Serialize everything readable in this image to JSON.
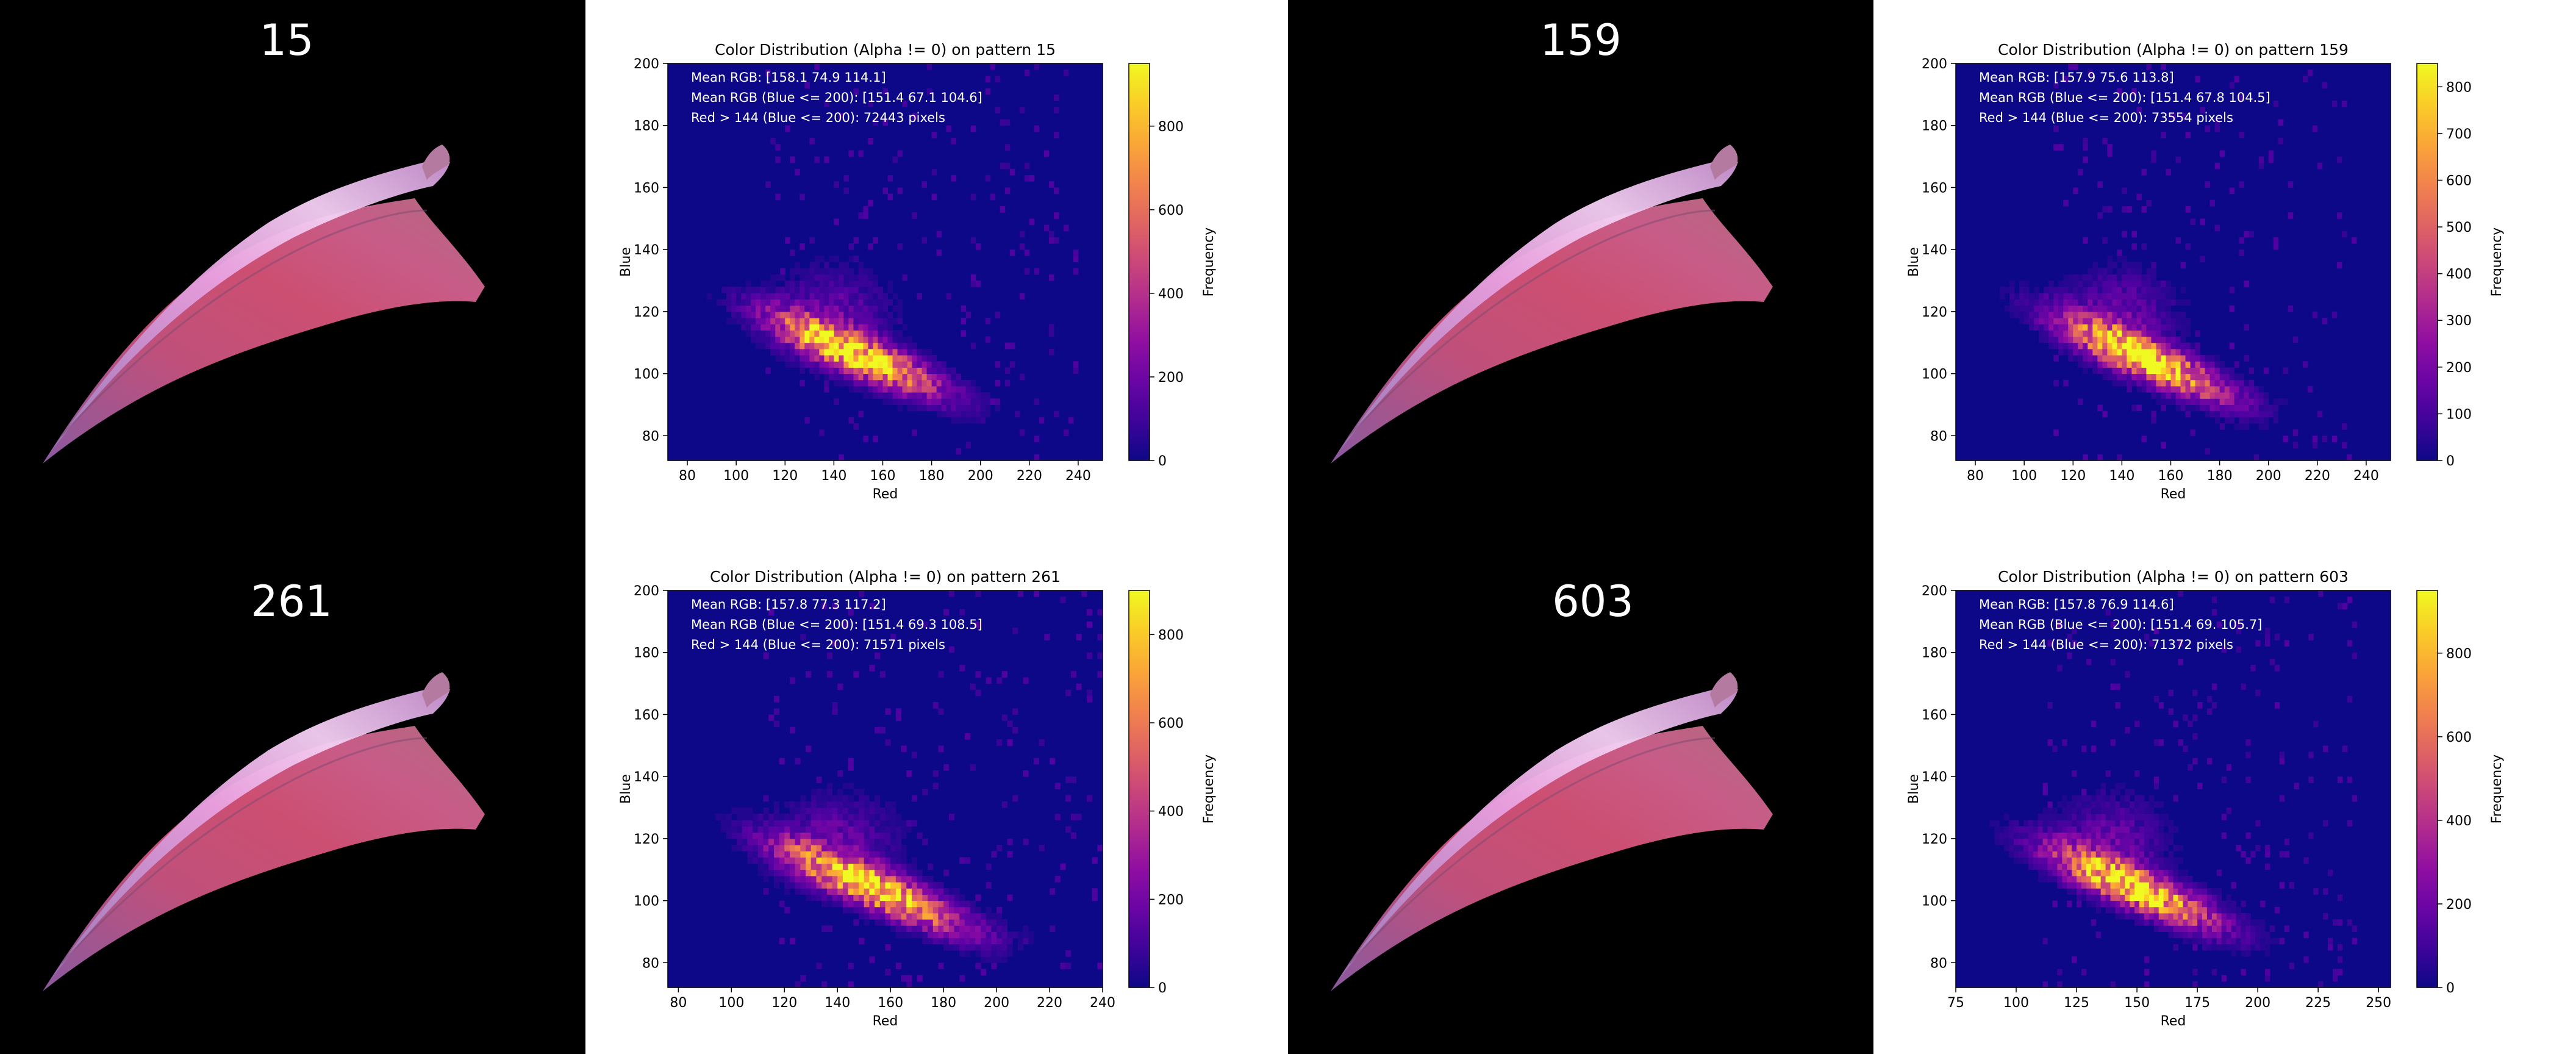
{
  "panels": [
    {
      "pattern_label": "15",
      "chart_title": "Color Distribution (Alpha != 0) on pattern 15",
      "stats": [
        "Mean RGB: [158.1  74.9 114.1]",
        "Mean RGB (Blue <= 200): [151.4  67.1 104.6]",
        "Red > 144 (Blue <= 200): 72443 pixels"
      ]
    },
    {
      "pattern_label": "159",
      "chart_title": "Color Distribution (Alpha != 0) on pattern 159",
      "stats": [
        "Mean RGB: [157.9  75.6 113.8]",
        "Mean RGB (Blue <= 200): [151.4  67.8 104.5]",
        "Red > 144 (Blue <= 200): 73554 pixels"
      ]
    },
    {
      "pattern_label": "261",
      "chart_title": "Color Distribution (Alpha != 0) on pattern 261",
      "stats": [
        "Mean RGB: [157.8  77.3 117.2]",
        "Mean RGB (Blue <= 200): [151.4  69.3 108.5]",
        "Red > 144 (Blue <= 200): 71571 pixels"
      ]
    },
    {
      "pattern_label": "603",
      "chart_title": "Color Distribution (Alpha != 0) on pattern 603",
      "stats": [
        "Mean RGB: [157.8  76.9 114.6]",
        "Mean RGB (Blue <= 200): [151.4  69.  105.7]",
        "Red > 144 (Blue <= 200): 71372 pixels"
      ]
    }
  ],
  "chart_data": [
    {
      "type": "heatmap",
      "title": "Color Distribution (Alpha != 0) on pattern 15",
      "xlabel": "Red",
      "ylabel": "Blue",
      "colorbar_label": "Frequency",
      "xlim": [
        72,
        250
      ],
      "ylim": [
        72,
        200
      ],
      "xticks": [
        80,
        100,
        120,
        140,
        160,
        180,
        200,
        220,
        240
      ],
      "yticks": [
        80,
        100,
        120,
        140,
        160,
        180,
        200
      ],
      "colorbar_range": [
        0,
        950
      ],
      "colorbar_ticks": [
        0,
        200,
        400,
        600,
        800
      ],
      "colormap": "plasma",
      "cluster": {
        "peak_red": 140,
        "peak_blue": 108,
        "end_red": 190,
        "end_blue": 92,
        "peak_frequency": 950
      }
    },
    {
      "type": "heatmap",
      "title": "Color Distribution (Alpha != 0) on pattern 159",
      "xlabel": "Red",
      "ylabel": "Blue",
      "colorbar_label": "Frequency",
      "xlim": [
        72,
        250
      ],
      "ylim": [
        72,
        200
      ],
      "xticks": [
        80,
        100,
        120,
        140,
        160,
        180,
        200,
        220,
        240
      ],
      "yticks": [
        80,
        100,
        120,
        140,
        160,
        180,
        200
      ],
      "colorbar_range": [
        0,
        850
      ],
      "colorbar_ticks": [
        0,
        100,
        200,
        300,
        400,
        500,
        600,
        700,
        800
      ],
      "colormap": "plasma",
      "cluster": {
        "peak_red": 140,
        "peak_blue": 107,
        "end_red": 190,
        "end_blue": 90,
        "peak_frequency": 850
      }
    },
    {
      "type": "heatmap",
      "title": "Color Distribution (Alpha != 0) on pattern 261",
      "xlabel": "Red",
      "ylabel": "Blue",
      "colorbar_label": "Frequency",
      "xlim": [
        76,
        240
      ],
      "ylim": [
        72,
        200
      ],
      "xticks": [
        80,
        100,
        120,
        140,
        160,
        180,
        200,
        220,
        240
      ],
      "yticks": [
        80,
        100,
        120,
        140,
        160,
        180,
        200
      ],
      "colorbar_range": [
        0,
        900
      ],
      "colorbar_ticks": [
        0,
        200,
        400,
        600,
        800
      ],
      "colormap": "plasma",
      "cluster": {
        "peak_red": 145,
        "peak_blue": 106,
        "end_red": 190,
        "end_blue": 90,
        "peak_frequency": 900
      }
    },
    {
      "type": "heatmap",
      "title": "Color Distribution (Alpha != 0) on pattern 603",
      "xlabel": "Red",
      "ylabel": "Blue",
      "colorbar_label": "Frequency",
      "xlim": [
        75,
        255
      ],
      "ylim": [
        72,
        200
      ],
      "xticks": [
        75,
        100,
        125,
        150,
        175,
        200,
        225,
        250
      ],
      "yticks": [
        80,
        100,
        120,
        140,
        160,
        180,
        200
      ],
      "colorbar_range": [
        0,
        950
      ],
      "colorbar_ticks": [
        0,
        200,
        400,
        600,
        800
      ],
      "colormap": "plasma",
      "cluster": {
        "peak_red": 140,
        "peak_blue": 106,
        "end_red": 190,
        "end_blue": 90,
        "peak_frequency": 950
      }
    }
  ]
}
